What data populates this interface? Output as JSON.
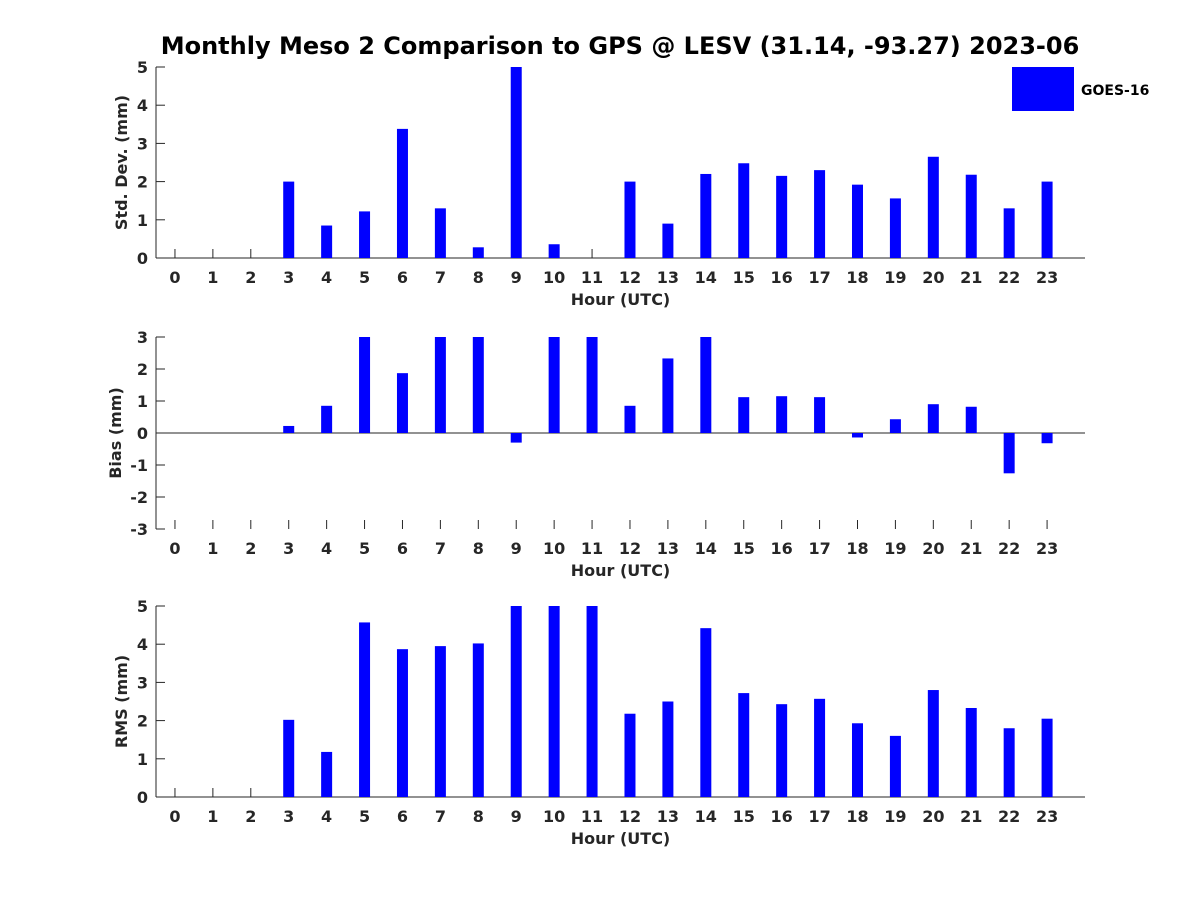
{
  "title": "Monthly Meso 2 Comparison to GPS @ LESV (31.14, -93.27) 2023-06",
  "legend": {
    "label": "GOES-16",
    "color": "#0000ff",
    "placement": "top-right"
  },
  "chart_data": [
    {
      "type": "bar",
      "ylabel": "Std. Dev. (mm)",
      "xlabel": "Hour (UTC)",
      "ylim": [
        0,
        5
      ],
      "yticks": [
        "0",
        "1",
        "2",
        "3",
        "4",
        "5"
      ],
      "ytick_values": [
        0,
        1,
        2,
        3,
        4,
        5
      ],
      "categories": [
        "0",
        "1",
        "2",
        "3",
        "4",
        "5",
        "6",
        "7",
        "8",
        "9",
        "10",
        "11",
        "12",
        "13",
        "14",
        "15",
        "16",
        "17",
        "18",
        "19",
        "20",
        "21",
        "22",
        "23"
      ],
      "series": [
        {
          "name": "GOES-16",
          "color": "#0000ff",
          "values": [
            null,
            null,
            null,
            2.0,
            0.85,
            1.22,
            3.38,
            1.3,
            0.28,
            5.0,
            0.36,
            null,
            2.0,
            0.9,
            2.2,
            2.48,
            2.15,
            2.3,
            1.92,
            1.56,
            2.65,
            2.18,
            1.3,
            2.0
          ]
        }
      ]
    },
    {
      "type": "bar",
      "ylabel": "Bias (mm)",
      "xlabel": "Hour (UTC)",
      "ylim": [
        -3,
        3
      ],
      "yticks": [
        "-3",
        "-2",
        "-1",
        "0",
        "1",
        "2",
        "3"
      ],
      "ytick_values": [
        -3,
        -2,
        -1,
        0,
        1,
        2,
        3
      ],
      "categories": [
        "0",
        "1",
        "2",
        "3",
        "4",
        "5",
        "6",
        "7",
        "8",
        "9",
        "10",
        "11",
        "12",
        "13",
        "14",
        "15",
        "16",
        "17",
        "18",
        "19",
        "20",
        "21",
        "22",
        "23"
      ],
      "series": [
        {
          "name": "GOES-16",
          "color": "#0000ff",
          "values": [
            null,
            null,
            null,
            0.22,
            0.85,
            3.0,
            1.87,
            3.0,
            3.0,
            -0.3,
            3.0,
            3.0,
            0.85,
            2.33,
            3.0,
            1.12,
            1.15,
            1.12,
            -0.14,
            0.43,
            0.9,
            0.82,
            -1.26,
            -0.32
          ]
        }
      ]
    },
    {
      "type": "bar",
      "ylabel": "RMS (mm)",
      "xlabel": "Hour (UTC)",
      "ylim": [
        0,
        5
      ],
      "yticks": [
        "0",
        "1",
        "2",
        "3",
        "4",
        "5"
      ],
      "ytick_values": [
        0,
        1,
        2,
        3,
        4,
        5
      ],
      "categories": [
        "0",
        "1",
        "2",
        "3",
        "4",
        "5",
        "6",
        "7",
        "8",
        "9",
        "10",
        "11",
        "12",
        "13",
        "14",
        "15",
        "16",
        "17",
        "18",
        "19",
        "20",
        "21",
        "22",
        "23"
      ],
      "series": [
        {
          "name": "GOES-16",
          "color": "#0000ff",
          "values": [
            null,
            null,
            null,
            2.02,
            1.18,
            4.57,
            3.87,
            3.95,
            4.02,
            5.0,
            5.0,
            5.0,
            2.18,
            2.5,
            4.42,
            2.72,
            2.43,
            2.57,
            1.93,
            1.6,
            2.8,
            2.33,
            1.8,
            2.05
          ]
        }
      ]
    }
  ]
}
